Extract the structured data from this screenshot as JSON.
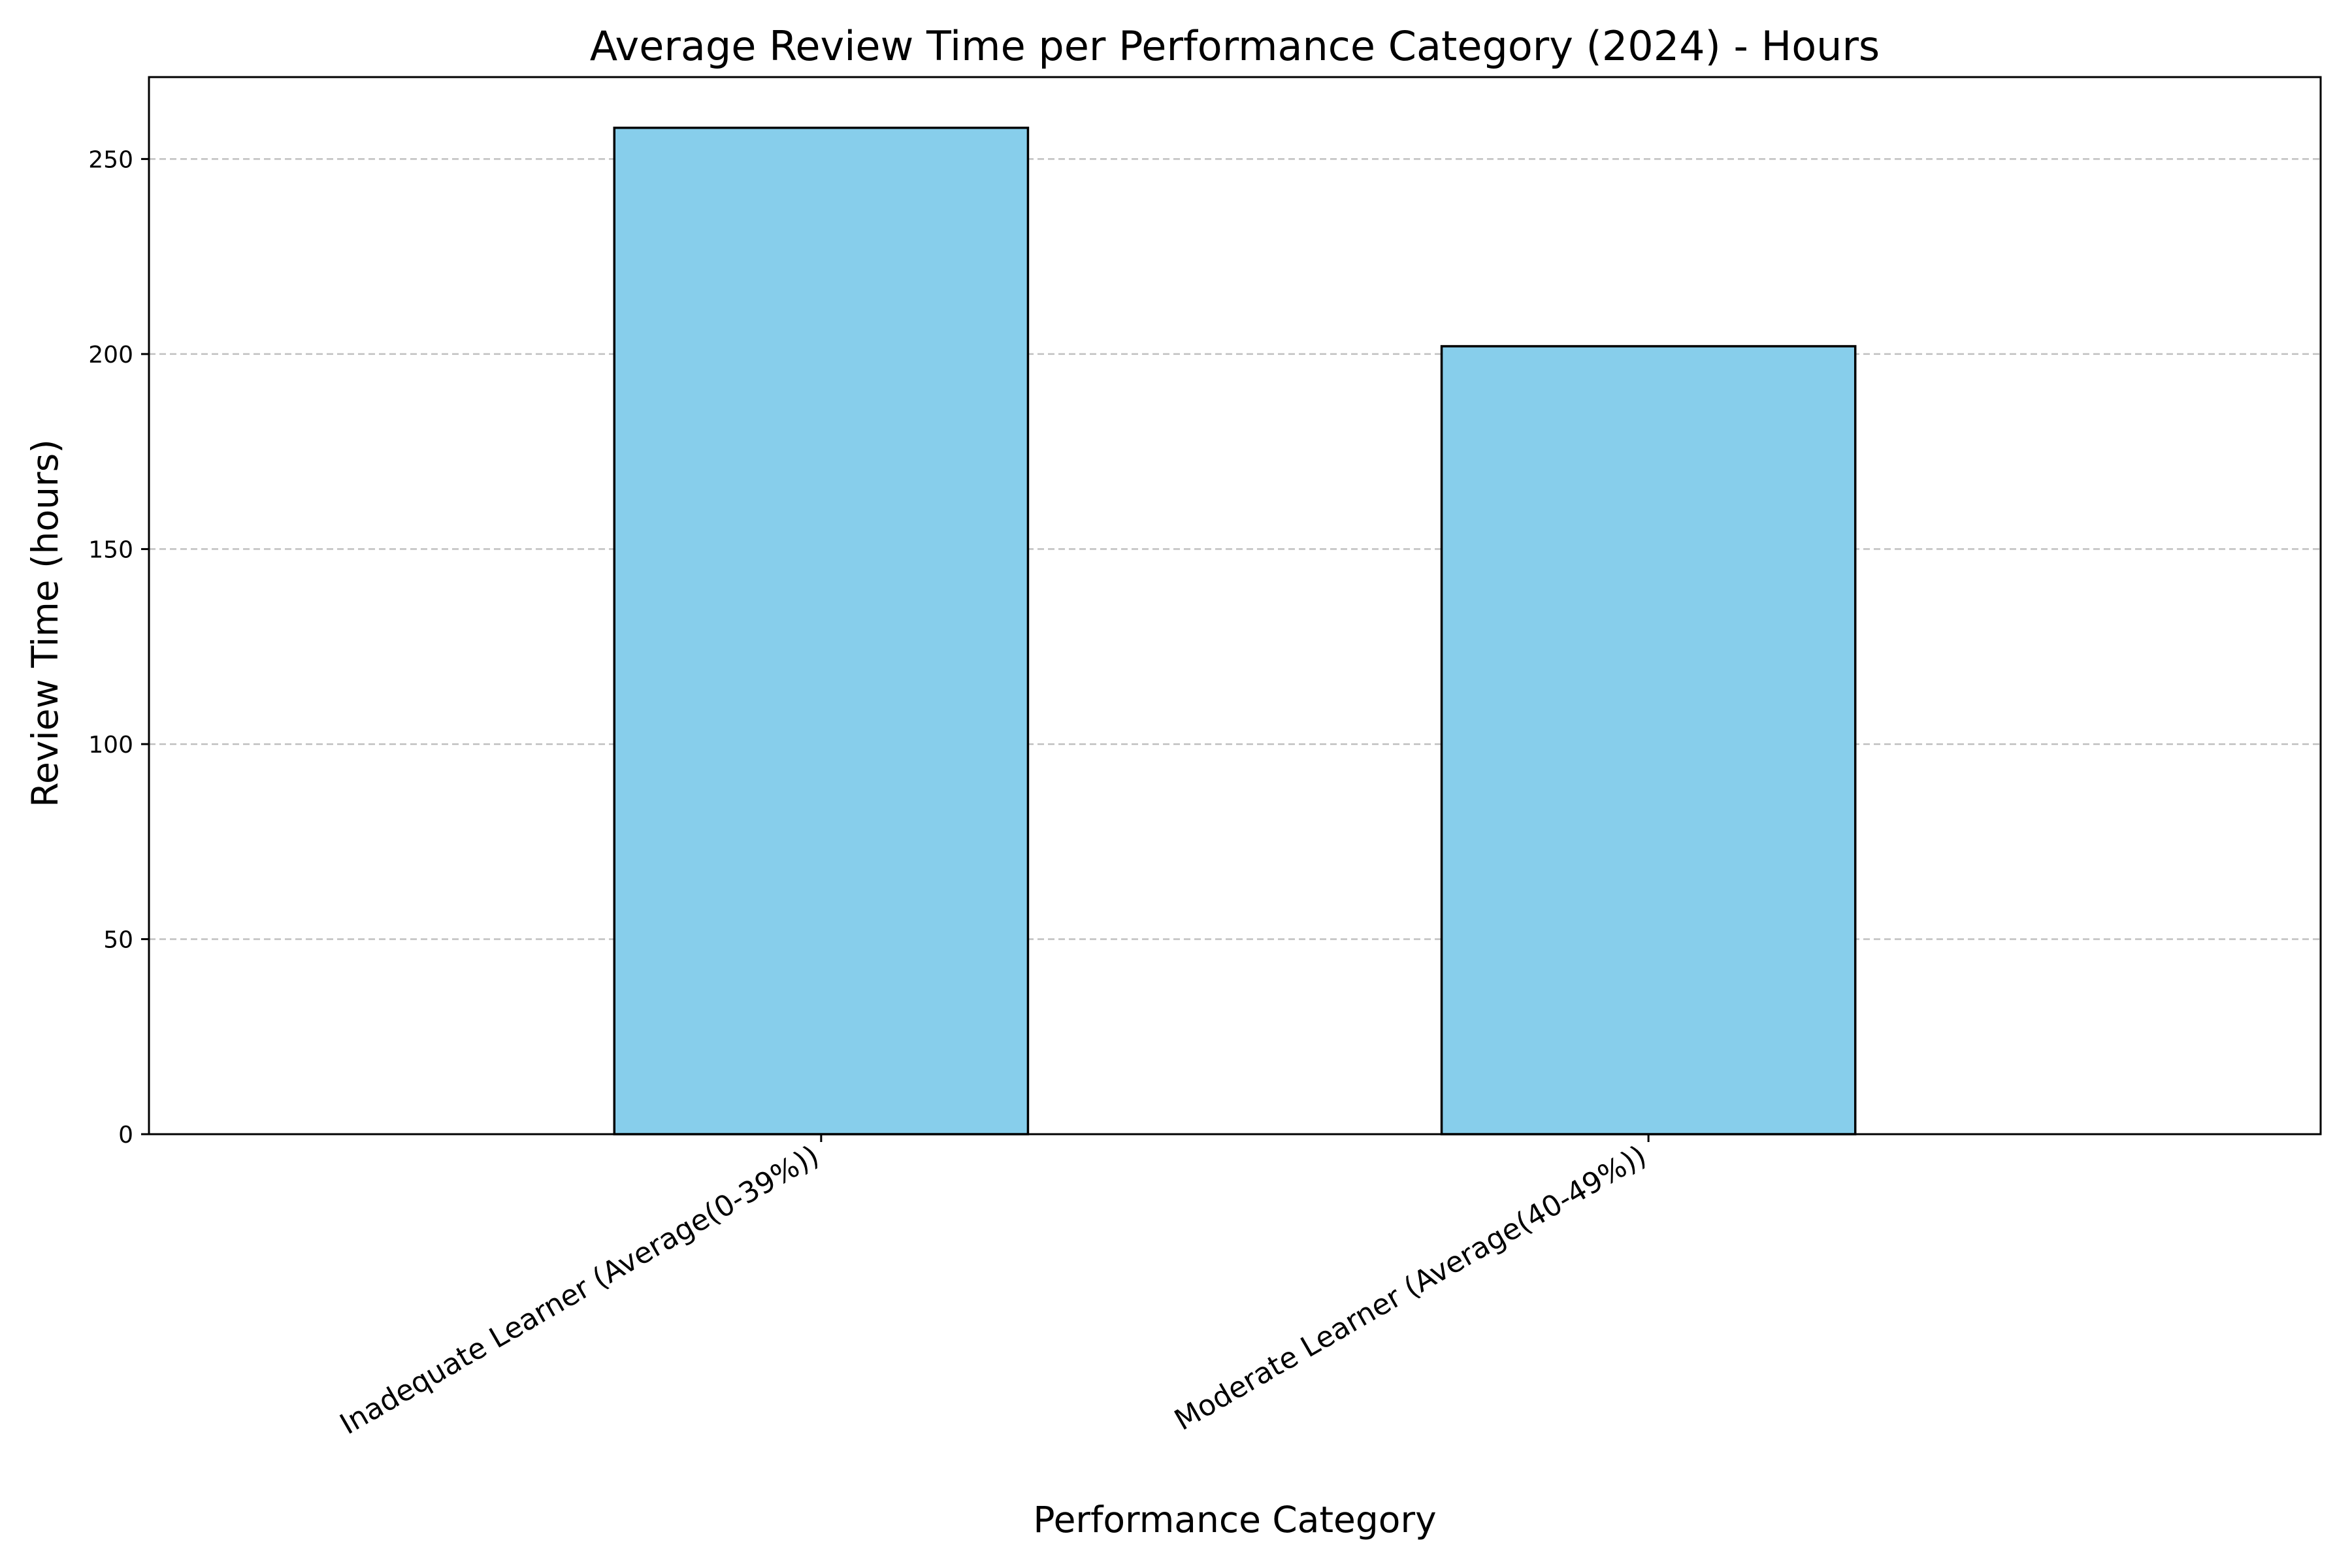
{
  "chart_data": {
    "type": "bar",
    "title": "Average Review Time per Performance Category (2024) - Hours",
    "xlabel": "Performance Category",
    "ylabel": "Review Time (hours)",
    "categories": [
      "Inadequate Learner (Average(0-39%))",
      "Moderate Learner (Average(40-49%))"
    ],
    "values": [
      258,
      202
    ],
    "ylim": [
      0,
      271
    ],
    "yticks": [
      0,
      50,
      100,
      150,
      200,
      250
    ],
    "grid": "y-dashed",
    "legend": "none",
    "colors": {
      "bar_fill": "#87CEEB",
      "bar_edge": "#000000",
      "grid": "#c0c0c0",
      "axis": "#000000"
    }
  }
}
